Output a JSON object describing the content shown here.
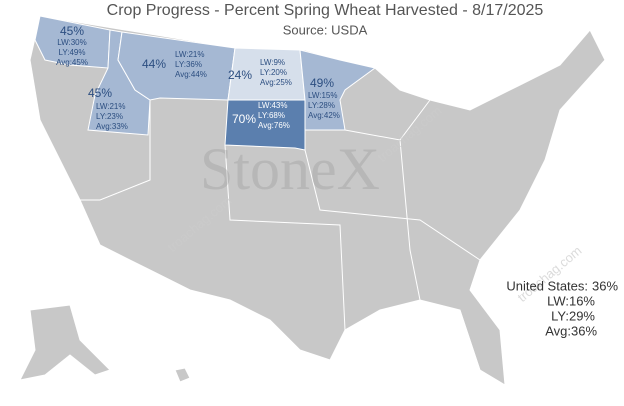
{
  "title": "Crop Progress - Percent Spring Wheat Harvested - 8/17/2025",
  "source": "Source: USDA",
  "watermark": "StoneX",
  "watermark_site": "troachag.com",
  "states": [
    {
      "pct": "45%",
      "lw": "LW:30%",
      "ly": "LY:49%",
      "avg": "Avg:45%",
      "color": "#a5b8d3"
    },
    {
      "pct": "45%",
      "lw": "LW:21%",
      "ly": "LY:23%",
      "avg": "Avg:33%",
      "color": "#a5b8d3"
    },
    {
      "pct": "44%",
      "lw": "LW:21%",
      "ly": "LY:36%",
      "avg": "Avg:44%",
      "color": "#a5b8d3"
    },
    {
      "pct": "24%",
      "lw": "LW:9%",
      "ly": "LY:20%",
      "avg": "Avg:25%",
      "color": "#d6dfeb"
    },
    {
      "pct": "70%",
      "lw": "LW:43%",
      "ly": "LY:68%",
      "avg": "Avg:76%",
      "color": "#5b7fae"
    },
    {
      "pct": "49%",
      "lw": "LW:15%",
      "ly": "LY:28%",
      "avg": "Avg:42%",
      "color": "#a5b8d3"
    }
  ],
  "national": {
    "label": "United States:",
    "pct": "36%",
    "lw": "LW:16%",
    "ly": "LY:29%",
    "avg": "Avg:36%"
  }
}
